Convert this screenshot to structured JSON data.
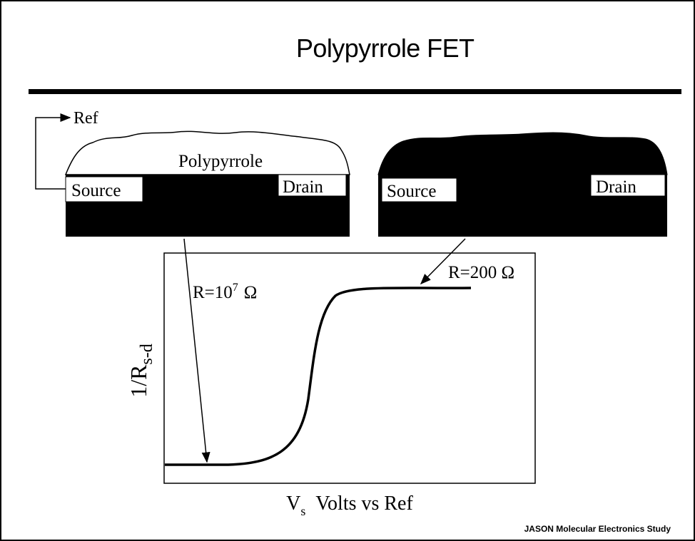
{
  "title": "Polypyrrole FET",
  "ref_label": "Ref",
  "devices": [
    {
      "film_label": "Polypyrrole",
      "source": "Source",
      "drain": "Drain"
    },
    {
      "source": "Source",
      "drain": "Drain"
    }
  ],
  "graph": {
    "y_label": {
      "text": "1/R",
      "sub": "s-d"
    },
    "x_label": {
      "text": "V",
      "sub": "s",
      "rest": "Volts vs Ref"
    },
    "annotations": [
      {
        "text": "R=10",
        "sup": "7",
        "unit": "Ω"
      },
      {
        "text": "R=200 Ω"
      }
    ]
  },
  "footer": "JASON Molecular Electronics Study"
}
